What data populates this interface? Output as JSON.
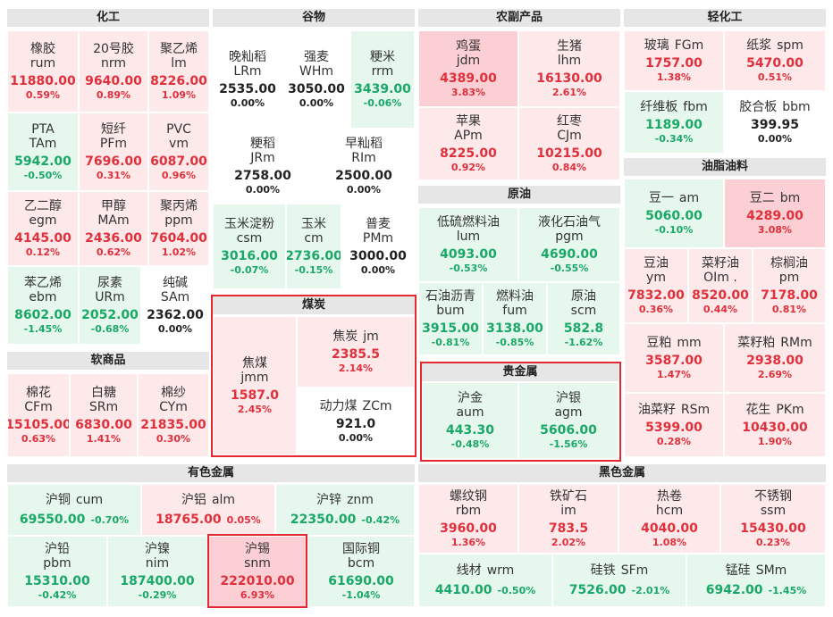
{
  "sections": {
    "huagong": "化工",
    "gubu": "谷物",
    "nongfu": "农副产品",
    "qinghuagong": "轻化工",
    "youzhi": "油脂油料",
    "yuanyou": "原油",
    "meitan": "煤炭",
    "guijinshu": "贵金属",
    "ruanshangpin": "软商品",
    "youse": "有色金属",
    "heise": "黑色金属"
  },
  "cells": {
    "rum": {
      "name": "橡胶",
      "code": "rum",
      "price": "11880.00",
      "pct": "0.59%"
    },
    "nrm": {
      "name": "20号胶",
      "code": "nrm",
      "price": "9640.00",
      "pct": "0.89%"
    },
    "lm": {
      "name": "聚乙烯",
      "code": "lm",
      "price": "8226.00",
      "pct": "1.09%"
    },
    "tam": {
      "name": "PTA",
      "code": "TAm",
      "price": "5942.00",
      "pct": "-0.50%"
    },
    "pfm": {
      "name": "短纤",
      "code": "PFm",
      "price": "7696.00",
      "pct": "0.31%"
    },
    "vm": {
      "name": "PVC",
      "code": "vm",
      "price": "6087.00",
      "pct": "0.96%"
    },
    "egm": {
      "name": "乙二醇",
      "code": "egm",
      "price": "4145.00",
      "pct": "0.12%"
    },
    "mam": {
      "name": "甲醇",
      "code": "MAm",
      "price": "2436.00",
      "pct": "0.62%"
    },
    "ppm": {
      "name": "聚丙烯",
      "code": "ppm",
      "price": "7604.00",
      "pct": "1.02%"
    },
    "ebm": {
      "name": "苯乙烯",
      "code": "ebm",
      "price": "8602.00",
      "pct": "-1.45%"
    },
    "urm": {
      "name": "尿素",
      "code": "URm",
      "price": "2052.00",
      "pct": "-0.68%"
    },
    "sam": {
      "name": "纯碱",
      "code": "SAm",
      "price": "2362.00",
      "pct": "0.00%"
    },
    "lrm": {
      "name": "晚籼稻",
      "code": "LRm",
      "price": "2535.00",
      "pct": "0.00%"
    },
    "whm": {
      "name": "强麦",
      "code": "WHm",
      "price": "3050.00",
      "pct": "0.00%"
    },
    "rrm": {
      "name": "粳米",
      "code": "rrm",
      "price": "3439.00",
      "pct": "-0.06%"
    },
    "jrm": {
      "name": "粳稻",
      "code": "JRm",
      "price": "2758.00",
      "pct": "0.00%"
    },
    "rim": {
      "name": "早籼稻",
      "code": "RIm",
      "price": "2500.00",
      "pct": "0.00%"
    },
    "csm": {
      "name": "玉米淀粉",
      "code": "csm",
      "price": "3016.00",
      "pct": "-0.07%"
    },
    "cm": {
      "name": "玉米",
      "code": "cm",
      "price": "2736.00",
      "pct": "-0.15%"
    },
    "pmm": {
      "name": "普麦",
      "code": "PMm",
      "price": "3000.00",
      "pct": "0.00%"
    },
    "jdm": {
      "name": "鸡蛋",
      "code": "jdm",
      "price": "4389.00",
      "pct": "3.83%"
    },
    "lhm": {
      "name": "生猪",
      "code": "lhm",
      "price": "16130.00",
      "pct": "2.61%"
    },
    "apm": {
      "name": "苹果",
      "code": "APm",
      "price": "8225.00",
      "pct": "0.92%"
    },
    "cjm": {
      "name": "红枣",
      "code": "CJm",
      "price": "10215.00",
      "pct": "0.84%"
    },
    "fgm": {
      "name": "玻璃",
      "code": "FGm",
      "price": "1757.00",
      "pct": "1.38%"
    },
    "spm": {
      "name": "纸浆",
      "code": "spm",
      "price": "5470.00",
      "pct": "0.51%"
    },
    "fbm": {
      "name": "纤维板",
      "code": "fbm",
      "price": "1189.00",
      "pct": "-0.34%"
    },
    "bbm": {
      "name": "胶合板",
      "code": "bbm",
      "price": "399.95",
      "pct": "0.00%"
    },
    "am": {
      "name": "豆一",
      "code": "am",
      "price": "5060.00",
      "pct": "-0.10%"
    },
    "bm": {
      "name": "豆二",
      "code": "bm",
      "price": "4289.00",
      "pct": "3.08%"
    },
    "ym": {
      "name": "豆油",
      "code": "ym",
      "price": "7832.00",
      "pct": "0.36%"
    },
    "oim": {
      "name": "菜籽油",
      "code": "OIm .",
      "price": "8520.00",
      "pct": "0.44%"
    },
    "pm": {
      "name": "棕榈油",
      "code": "pm",
      "price": "7178.00",
      "pct": "0.81%"
    },
    "mm": {
      "name": "豆粕",
      "code": "mm",
      "price": "3587.00",
      "pct": "1.47%"
    },
    "rmm": {
      "name": "菜籽粕",
      "code": "RMm",
      "price": "2938.00",
      "pct": "2.69%"
    },
    "rsm": {
      "name": "油菜籽",
      "code": "RSm",
      "price": "5399.00",
      "pct": "0.28%"
    },
    "pkm": {
      "name": "花生",
      "code": "PKm",
      "price": "10430.00",
      "pct": "1.90%"
    },
    "lum": {
      "name": "低硫燃料油",
      "code": "lum",
      "price": "4093.00",
      "pct": "-0.53%"
    },
    "pgm": {
      "name": "液化石油气",
      "code": "pgm",
      "price": "4690.00",
      "pct": "-0.55%"
    },
    "bum": {
      "name": "石油沥青",
      "code": "bum",
      "price": "3915.00",
      "pct": "-0.81%"
    },
    "fum": {
      "name": "燃料油",
      "code": "fum",
      "price": "3138.00",
      "pct": "-0.85%"
    },
    "scm": {
      "name": "原油",
      "code": "scm",
      "price": "582.8",
      "pct": "-1.62%"
    },
    "jmm": {
      "name": "焦煤",
      "code": "jmm",
      "price": "1587.0",
      "pct": "2.45%"
    },
    "jm": {
      "name": "焦炭",
      "code": "jm",
      "price": "2385.5",
      "pct": "2.14%"
    },
    "zcm": {
      "name": "动力煤",
      "code": "ZCm",
      "price": "921.0",
      "pct": "0.00%"
    },
    "aum": {
      "name": "沪金",
      "code": "aum",
      "price": "443.30",
      "pct": "-0.48%"
    },
    "agm": {
      "name": "沪银",
      "code": "agm",
      "price": "5606.00",
      "pct": "-1.56%"
    },
    "cfm": {
      "name": "棉花",
      "code": "CFm",
      "price": "15105.00",
      "pct": "0.63%"
    },
    "srm": {
      "name": "白糖",
      "code": "SRm",
      "price": "6830.00",
      "pct": "1.41%"
    },
    "cym": {
      "name": "棉纱",
      "code": "CYm",
      "price": "21835.00",
      "pct": "0.30%"
    },
    "cum": {
      "name": "沪铜",
      "code": "cum",
      "price": "69550.00",
      "pct": "-0.70%"
    },
    "alm": {
      "name": "沪铝",
      "code": "alm",
      "price": "18765.00",
      "pct": "0.05%"
    },
    "znm": {
      "name": "沪锌",
      "code": "znm",
      "price": "22350.00",
      "pct": "-0.42%"
    },
    "pbm": {
      "name": "沪铅",
      "code": "pbm",
      "price": "15310.00",
      "pct": "-0.42%"
    },
    "nim": {
      "name": "沪镍",
      "code": "nim",
      "price": "187400.00",
      "pct": "-0.29%"
    },
    "snm": {
      "name": "沪锡",
      "code": "snm",
      "price": "222010.00",
      "pct": "6.93%"
    },
    "bcm": {
      "name": "国际铜",
      "code": "bcm",
      "price": "61690.00",
      "pct": "-1.04%"
    },
    "rbm": {
      "name": "螺纹钢",
      "code": "rbm",
      "price": "3960.00",
      "pct": "1.36%"
    },
    "im": {
      "name": "铁矿石",
      "code": "im",
      "price": "783.5",
      "pct": "2.02%"
    },
    "hcm": {
      "name": "热卷",
      "code": "hcm",
      "price": "4040.00",
      "pct": "1.08%"
    },
    "ssm": {
      "name": "不锈钢",
      "code": "ssm",
      "price": "15430.00",
      "pct": "0.23%"
    },
    "wrm": {
      "name": "线材",
      "code": "wrm",
      "price": "4410.00",
      "pct": "-0.50%"
    },
    "sfm": {
      "name": "硅铁",
      "code": "SFm",
      "price": "7526.00",
      "pct": "-2.01%"
    },
    "smm": {
      "name": "锰硅",
      "code": "SMm",
      "price": "6942.00",
      "pct": "-1.45%"
    }
  },
  "colors": {
    "up": "#e0303b",
    "down": "#1aa866",
    "flat": "#222222",
    "highlight": "#e4282f"
  }
}
